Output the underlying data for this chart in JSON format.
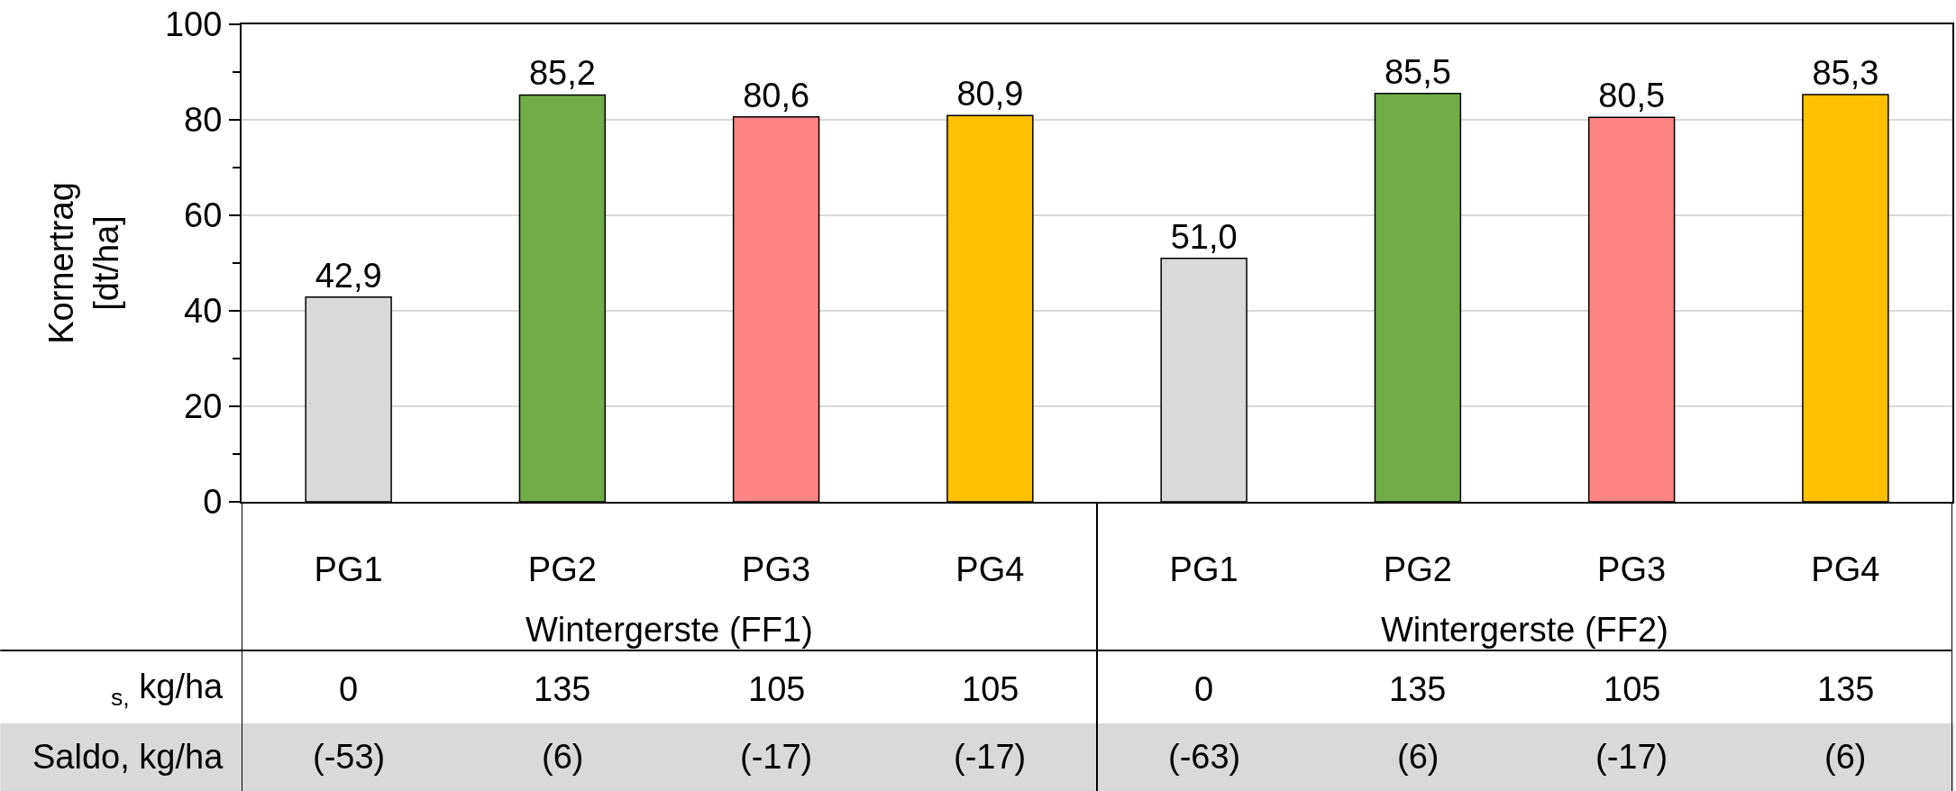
{
  "chart_data": {
    "type": "bar",
    "ylabel": "Kornertrag\n[dt/ha]",
    "categories": [
      "PG1",
      "PG2",
      "PG3",
      "PG4",
      "PG1",
      "PG2",
      "PG3",
      "PG4"
    ],
    "values": [
      42.9,
      85.2,
      80.6,
      80.9,
      51.0,
      85.5,
      80.5,
      85.3
    ],
    "value_labels": [
      "42,9",
      "85,2",
      "80,6",
      "80,9",
      "51,0",
      "85,5",
      "80,5",
      "85,3"
    ],
    "colors": [
      "#d9d9d9",
      "#70ad47",
      "#ff8585",
      "#ffc000",
      "#d9d9d9",
      "#70ad47",
      "#ff8585",
      "#ffc000"
    ],
    "ylim": [
      0,
      100
    ],
    "yticks": [
      0,
      {
        "value": 10,
        "label": null
      },
      20,
      {
        "value": 30,
        "label": null
      },
      40,
      {
        "value": 50,
        "label": null
      },
      60,
      {
        "value": 70,
        "label": null
      },
      80,
      {
        "value": 90,
        "label": null
      },
      100
    ],
    "grid": "y",
    "annotations": [
      "Wintergerste (FF1)",
      "Wintergerste (FF2)",
      "$_{s,}$ kg/ha",
      "0",
      "135",
      "105",
      "105",
      "0",
      "135",
      "105",
      "135",
      "Saldo, kg/ha",
      "(-53)",
      "(6)",
      "(-17)",
      "(-17)",
      "(-63)",
      "(6)",
      "(-17)",
      "(6)"
    ]
  }
}
